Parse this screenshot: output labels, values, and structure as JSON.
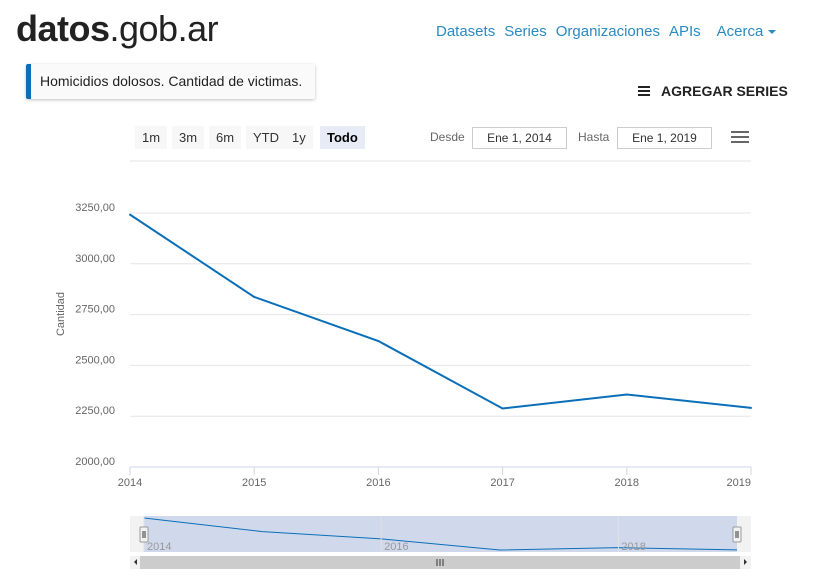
{
  "logo": {
    "bold": "datos",
    "rest": ".gob.ar"
  },
  "nav": {
    "items": [
      "Datasets",
      "Series",
      "Organizaciones",
      "APIs",
      "Acerca"
    ]
  },
  "series_tag": "Homicidios dolosos. Cantidad de victimas.",
  "add_series": "AGREGAR SERIES",
  "range_selector": {
    "buttons": [
      "1m",
      "3m",
      "6m",
      "YTD",
      "1y",
      "Todo"
    ],
    "active": "Todo",
    "from_label": "Desde",
    "from_value": "Ene 1, 2014",
    "to_label": "Hasta",
    "to_value": "Ene 1, 2019"
  },
  "colors": {
    "line": "#0a6fb8",
    "nav_fill": "#ccd6eb",
    "accent": "#2a8bc0"
  },
  "chart_data": {
    "type": "line",
    "ylabel": "Cantidad",
    "x": [
      "2014",
      "2015",
      "2016",
      "2017",
      "2018",
      "2019"
    ],
    "series": [
      {
        "values": [
          3242,
          2837,
          2620,
          2288,
          2357,
          2291
        ]
      }
    ],
    "ylim": [
      2000,
      3250
    ],
    "yticks": [
      "3250,00",
      "3000,00",
      "2750,00",
      "2500,00",
      "2250,00",
      "2000,00"
    ],
    "xticks": [
      "2014",
      "2015",
      "2016",
      "2017",
      "2018",
      "2019"
    ],
    "navigator_labels": [
      "2014",
      "2016",
      "2018"
    ],
    "grid": true
  }
}
